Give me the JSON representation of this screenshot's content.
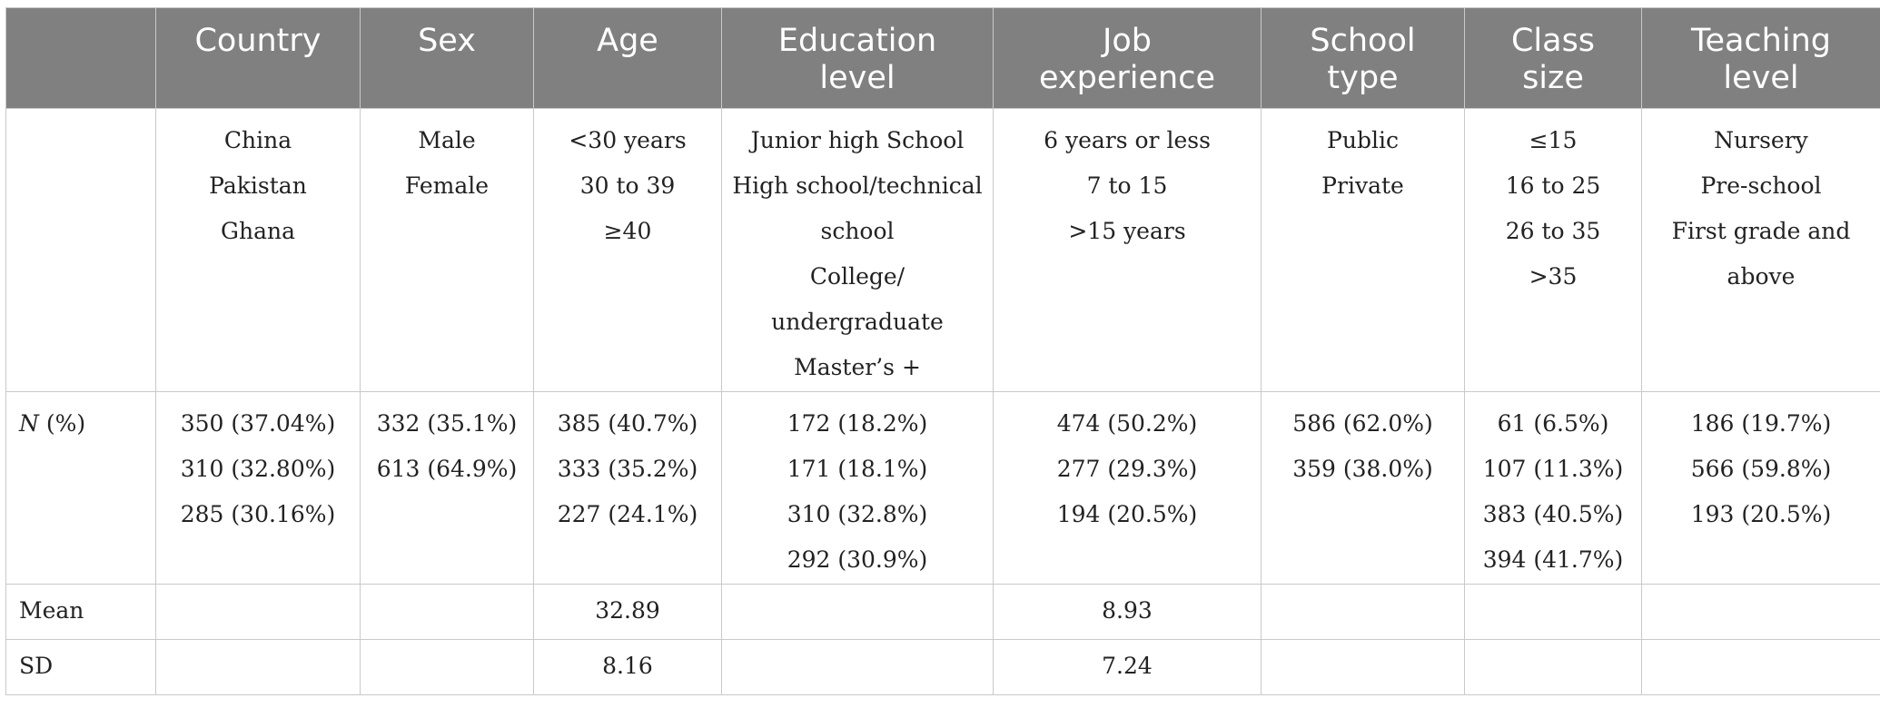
{
  "headers": [
    {
      "key": "blank",
      "lines": [
        ""
      ]
    },
    {
      "key": "country",
      "lines": [
        "Country"
      ]
    },
    {
      "key": "sex",
      "lines": [
        "Sex"
      ]
    },
    {
      "key": "age",
      "lines": [
        "Age"
      ]
    },
    {
      "key": "education",
      "lines": [
        "Education",
        "level"
      ]
    },
    {
      "key": "experience",
      "lines": [
        "Job",
        "experience"
      ]
    },
    {
      "key": "school_type",
      "lines": [
        "School",
        "type"
      ]
    },
    {
      "key": "class_size",
      "lines": [
        "Class",
        "size"
      ]
    },
    {
      "key": "teaching",
      "lines": [
        "Teaching",
        "level"
      ]
    }
  ],
  "categories": {
    "country": [
      "China",
      "Pakistan",
      "Ghana"
    ],
    "sex": [
      "Male",
      "Female"
    ],
    "age": [
      "<30 years",
      "30 to 39",
      "≥40"
    ],
    "education": [
      "Junior high School",
      "High school/technical",
      "school",
      "College/",
      "undergraduate",
      "Master’s +"
    ],
    "experience": [
      "6 years or less",
      "7 to 15",
      ">15 years"
    ],
    "school_type": [
      "Public",
      "Private"
    ],
    "class_size": [
      "≤15",
      "16 to 25",
      "26 to 35",
      ">35"
    ],
    "teaching": [
      "Nursery",
      "Pre-school",
      "First grade and",
      "above"
    ]
  },
  "rows": {
    "n": {
      "label_italic": "N",
      "label_rest": " (%)",
      "country": [
        "350 (37.04%)",
        "310 (32.80%)",
        "285 (30.16%)"
      ],
      "sex": [
        "332 (35.1%)",
        "613 (64.9%)"
      ],
      "age": [
        "385 (40.7%)",
        "333 (35.2%)",
        "227 (24.1%)"
      ],
      "education": [
        "172 (18.2%)",
        "171 (18.1%)",
        "310 (32.8%)",
        "292 (30.9%)"
      ],
      "experience": [
        "474 (50.2%)",
        "277 (29.3%)",
        "194 (20.5%)"
      ],
      "school_type": [
        "586 (62.0%)",
        "359 (38.0%)"
      ],
      "class_size": [
        "61 (6.5%)",
        "107 (11.3%)",
        "383 (40.5%)",
        "394 (41.7%)"
      ],
      "teaching": [
        "186 (19.7%)",
        "566 (59.8%)",
        "193 (20.5%)"
      ]
    },
    "mean": {
      "label": "Mean",
      "age": "32.89",
      "experience": "8.93"
    },
    "sd": {
      "label": "SD",
      "age": "8.16",
      "experience": "7.24"
    }
  },
  "colors": {
    "header_bg": "#808080",
    "header_text": "#ffffff",
    "border": "#c9c9c9",
    "body_text": "#222222"
  }
}
